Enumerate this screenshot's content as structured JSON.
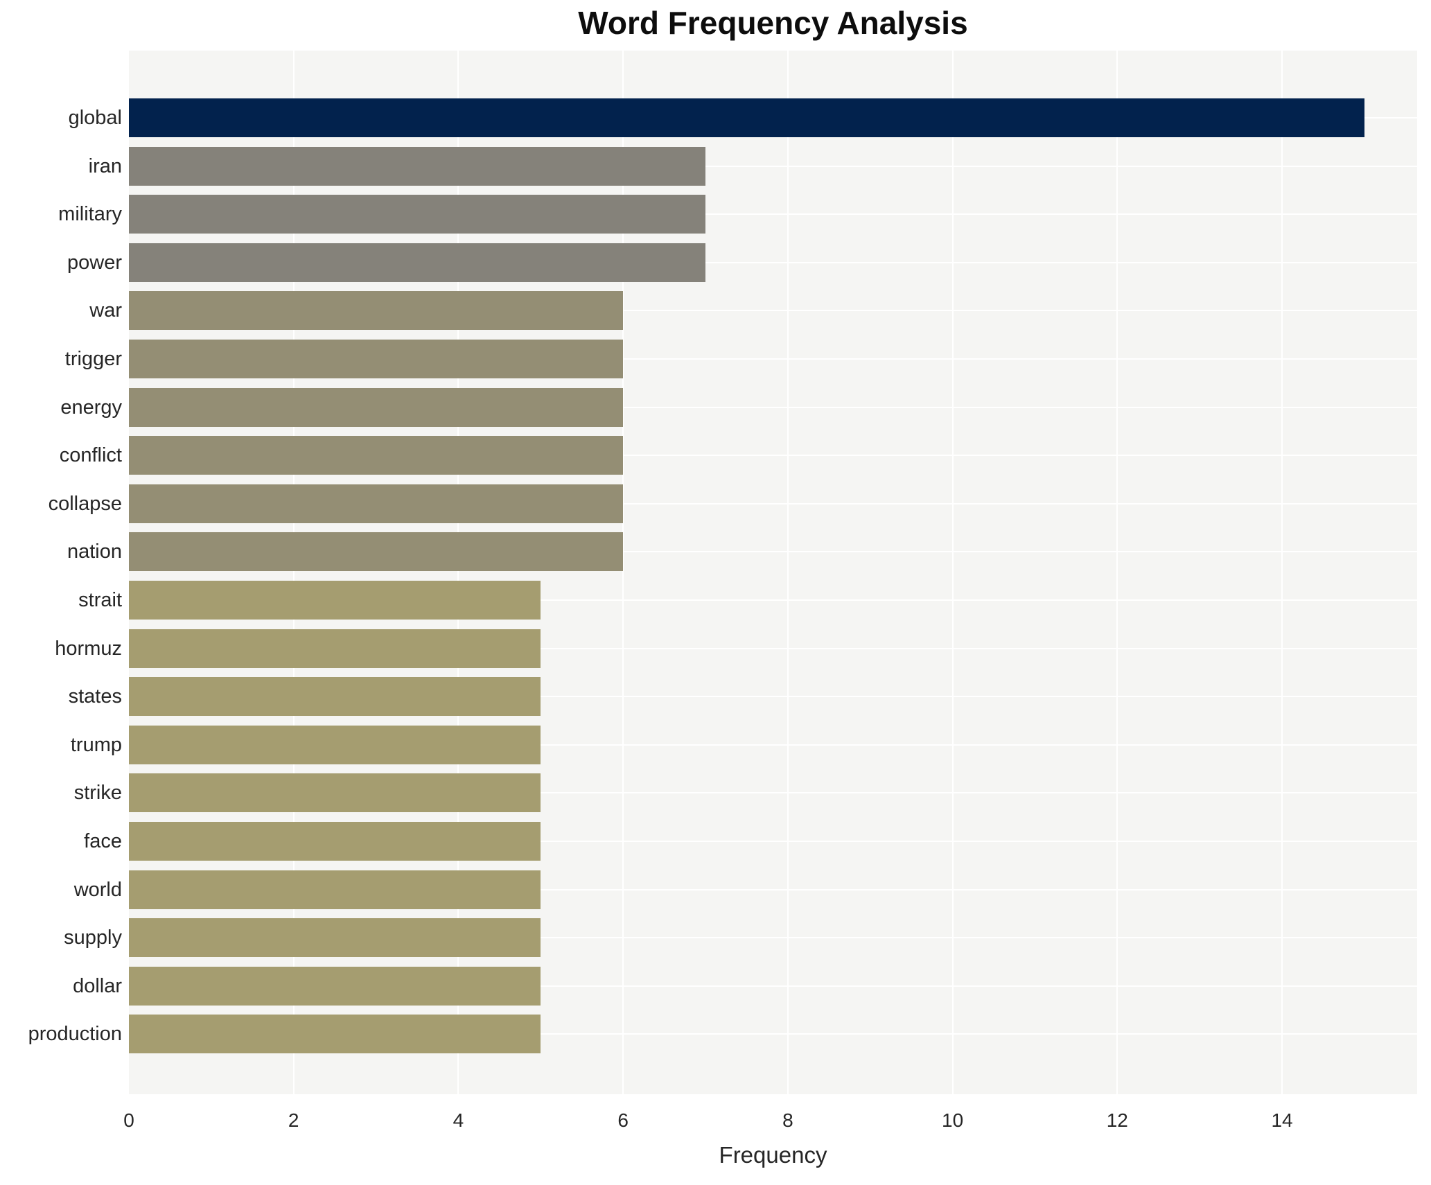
{
  "title": "Word Frequency Analysis",
  "chart_data": {
    "type": "bar",
    "orientation": "horizontal",
    "title": "Word Frequency Analysis",
    "xlabel": "Frequency",
    "ylabel": "",
    "categories": [
      "global",
      "iran",
      "military",
      "power",
      "war",
      "trigger",
      "energy",
      "conflict",
      "collapse",
      "nation",
      "strait",
      "hormuz",
      "states",
      "trump",
      "strike",
      "face",
      "world",
      "supply",
      "dollar",
      "production"
    ],
    "values": [
      15,
      7,
      7,
      7,
      6,
      6,
      6,
      6,
      6,
      6,
      5,
      5,
      5,
      5,
      5,
      5,
      5,
      5,
      5,
      5
    ],
    "bar_colors": [
      "#02224d",
      "#85827a",
      "#85827a",
      "#85827a",
      "#948e74",
      "#948e74",
      "#948e74",
      "#948e74",
      "#948e74",
      "#948e74",
      "#a59d70",
      "#a59d70",
      "#a59d70",
      "#a59d70",
      "#a59d70",
      "#a59d70",
      "#a59d70",
      "#a59d70",
      "#a59d70",
      "#a59d70"
    ],
    "color_legend": {
      "navy": "#02224d",
      "gray": "#85827a",
      "olive": "#948e74",
      "khaki": "#a59d70"
    },
    "xticks": [
      0,
      2,
      4,
      6,
      8,
      10,
      12,
      14
    ],
    "xlim": [
      0,
      15.65
    ],
    "grid": true,
    "legend_position": "none",
    "plot_background": "#f5f5f3",
    "grid_color": "#ffffff",
    "text_color": "#262626"
  }
}
